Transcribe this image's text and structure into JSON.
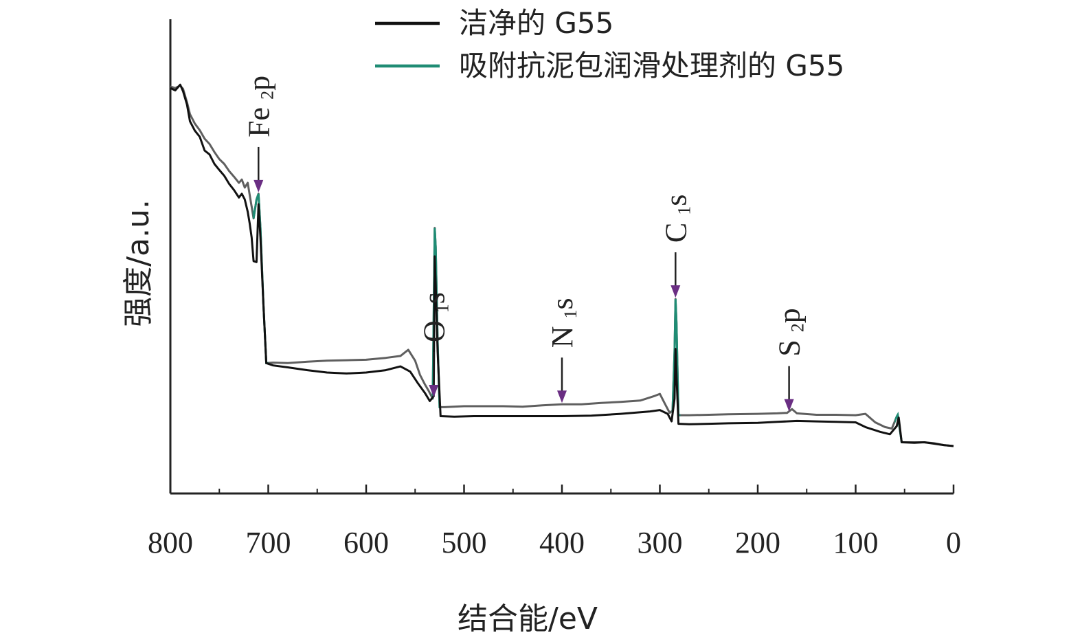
{
  "chart_data": {
    "type": "line",
    "title": "",
    "xlabel": "结合能/eV",
    "ylabel": "强度/a.u.",
    "xlim": [
      800,
      0
    ],
    "ylim": [
      0,
      100
    ],
    "x_ticks": [
      "800",
      "700",
      "600",
      "500",
      "400",
      "300",
      "200",
      "100",
      "0"
    ],
    "y_ticks_shown": false,
    "legend_position": "top",
    "series": [
      {
        "name": "洁净的 G55",
        "color": "#111111",
        "points": [
          [
            800,
            85.5
          ],
          [
            795,
            85.0
          ],
          [
            790,
            86.2
          ],
          [
            787,
            84.8
          ],
          [
            783,
            82.0
          ],
          [
            780,
            78.5
          ],
          [
            775,
            76.5
          ],
          [
            770,
            75.2
          ],
          [
            765,
            72.3
          ],
          [
            760,
            71.5
          ],
          [
            755,
            69.5
          ],
          [
            750,
            68.2
          ],
          [
            745,
            67.0
          ],
          [
            740,
            65.3
          ],
          [
            735,
            64.0
          ],
          [
            730,
            62.4
          ],
          [
            727,
            63.2
          ],
          [
            724,
            62.0
          ],
          [
            721,
            59.4
          ],
          [
            719,
            57.0
          ],
          [
            717,
            54.0
          ],
          [
            715,
            49.0
          ],
          [
            712,
            48.8
          ],
          [
            710,
            61.0
          ],
          [
            708,
            54.0
          ],
          [
            705,
            40.0
          ],
          [
            702,
            27.5
          ],
          [
            695,
            27.0
          ],
          [
            680,
            26.6
          ],
          [
            660,
            26.0
          ],
          [
            640,
            25.5
          ],
          [
            620,
            25.3
          ],
          [
            600,
            25.5
          ],
          [
            580,
            26.0
          ],
          [
            565,
            26.8
          ],
          [
            555,
            25.7
          ],
          [
            547,
            23.2
          ],
          [
            540,
            21.2
          ],
          [
            535,
            19.5
          ],
          [
            531,
            20.5
          ],
          [
            530,
            50.0
          ],
          [
            529,
            44.0
          ],
          [
            527,
            30.0
          ],
          [
            524,
            16.3
          ],
          [
            510,
            16.2
          ],
          [
            490,
            16.3
          ],
          [
            470,
            16.3
          ],
          [
            450,
            16.3
          ],
          [
            430,
            16.3
          ],
          [
            400,
            16.3
          ],
          [
            370,
            16.4
          ],
          [
            340,
            16.8
          ],
          [
            310,
            17.3
          ],
          [
            300,
            17.6
          ],
          [
            292,
            16.8
          ],
          [
            288,
            15.2
          ],
          [
            285,
            20.0
          ],
          [
            284,
            30.5
          ],
          [
            283,
            25.0
          ],
          [
            281,
            14.7
          ],
          [
            270,
            14.6
          ],
          [
            250,
            14.7
          ],
          [
            230,
            14.8
          ],
          [
            200,
            14.9
          ],
          [
            180,
            15.1
          ],
          [
            160,
            15.3
          ],
          [
            140,
            15.2
          ],
          [
            120,
            15.1
          ],
          [
            100,
            15.0
          ],
          [
            90,
            14.0
          ],
          [
            75,
            13.0
          ],
          [
            65,
            12.5
          ],
          [
            58,
            14.2
          ],
          [
            56,
            16.0
          ],
          [
            53,
            10.8
          ],
          [
            40,
            10.7
          ],
          [
            30,
            10.8
          ],
          [
            20,
            10.5
          ],
          [
            10,
            10.2
          ],
          [
            0,
            10.0
          ]
        ]
      },
      {
        "name": "吸附抗泥包润滑处理剂的 G55",
        "color": "#5f5f5f",
        "accent_color": "#1f8c74",
        "points": [
          [
            800,
            85.8
          ],
          [
            795,
            85.5
          ],
          [
            790,
            86.0
          ],
          [
            787,
            85.3
          ],
          [
            783,
            82.5
          ],
          [
            780,
            80.0
          ],
          [
            775,
            78.0
          ],
          [
            770,
            76.6
          ],
          [
            765,
            74.8
          ],
          [
            760,
            73.7
          ],
          [
            755,
            72.0
          ],
          [
            750,
            70.5
          ],
          [
            745,
            69.5
          ],
          [
            740,
            68.0
          ],
          [
            735,
            66.8
          ],
          [
            730,
            65.5
          ],
          [
            727,
            66.2
          ],
          [
            724,
            64.5
          ],
          [
            721,
            65.5
          ],
          [
            719,
            63.0
          ],
          [
            717,
            60.5
          ],
          [
            715,
            58.0
          ],
          [
            712,
            62.0
          ],
          [
            710,
            63.2
          ],
          [
            708,
            56.0
          ],
          [
            705,
            40.0
          ],
          [
            702,
            27.5
          ],
          [
            695,
            27.6
          ],
          [
            680,
            27.5
          ],
          [
            660,
            27.8
          ],
          [
            640,
            28.0
          ],
          [
            620,
            28.1
          ],
          [
            600,
            28.2
          ],
          [
            580,
            28.6
          ],
          [
            565,
            29.0
          ],
          [
            557,
            30.3
          ],
          [
            550,
            28.0
          ],
          [
            545,
            25.0
          ],
          [
            540,
            23.0
          ],
          [
            536,
            21.6
          ],
          [
            532,
            20.0
          ],
          [
            530,
            56.0
          ],
          [
            529,
            52.0
          ],
          [
            527,
            32.0
          ],
          [
            525,
            18.2
          ],
          [
            520,
            18.2
          ],
          [
            500,
            18.4
          ],
          [
            480,
            18.4
          ],
          [
            460,
            18.4
          ],
          [
            440,
            18.3
          ],
          [
            420,
            18.6
          ],
          [
            400,
            18.8
          ],
          [
            380,
            18.8
          ],
          [
            360,
            19.1
          ],
          [
            340,
            19.3
          ],
          [
            320,
            19.6
          ],
          [
            305,
            20.6
          ],
          [
            300,
            21.0
          ],
          [
            295,
            19.0
          ],
          [
            290,
            17.0
          ],
          [
            287,
            17.5
          ],
          [
            285,
            30.0
          ],
          [
            284,
            41.0
          ],
          [
            283,
            36.0
          ],
          [
            281,
            16.5
          ],
          [
            270,
            16.5
          ],
          [
            250,
            16.6
          ],
          [
            230,
            16.7
          ],
          [
            200,
            16.8
          ],
          [
            180,
            16.9
          ],
          [
            170,
            17.0
          ],
          [
            165,
            17.8
          ],
          [
            160,
            16.9
          ],
          [
            140,
            16.6
          ],
          [
            120,
            16.6
          ],
          [
            100,
            16.5
          ],
          [
            90,
            16.8
          ],
          [
            80,
            15.0
          ],
          [
            70,
            14.0
          ],
          [
            63,
            13.7
          ],
          [
            58,
            16.2
          ],
          [
            57,
            16.6
          ],
          [
            53,
            10.8
          ],
          [
            40,
            10.8
          ],
          [
            30,
            10.8
          ],
          [
            20,
            10.6
          ],
          [
            10,
            10.2
          ],
          [
            0,
            10.0
          ]
        ]
      }
    ],
    "annotations": [
      {
        "label": "Fe",
        "sub": "2",
        "tail": "p",
        "x": 710
      },
      {
        "label": "O",
        "sub": "1",
        "tail": "s",
        "x": 531
      },
      {
        "label": "N",
        "sub": "1",
        "tail": "s",
        "x": 400
      },
      {
        "label": "C",
        "sub": "1",
        "tail": "s",
        "x": 284
      },
      {
        "label": "S",
        "sub": "2",
        "tail": "p",
        "x": 168
      }
    ],
    "arrow_color": "#6a2e83"
  }
}
